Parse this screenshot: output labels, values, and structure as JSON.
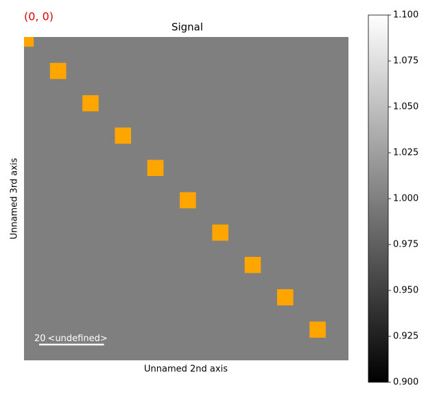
{
  "chart_data": {
    "type": "heatmap",
    "corner_label": "(0, 0)",
    "title": "Signal",
    "xlabel": "Unnamed 2nd axis",
    "ylabel": "Unnamed 3rd axis",
    "values": [
      [
        1
      ]
    ],
    "xlim": [
      -0.5,
      99.5
    ],
    "ylim": [
      99.5,
      -0.5
    ],
    "colormap": "gray",
    "colorbar": {
      "lim": [
        0.9,
        1.1
      ],
      "ticks": [
        {
          "value": 0.9,
          "label": "0.900"
        },
        {
          "value": 0.925,
          "label": "0.925"
        },
        {
          "value": 0.95,
          "label": "0.950"
        },
        {
          "value": 0.975,
          "label": "0.975"
        },
        {
          "value": 1.0,
          "label": "1.000"
        },
        {
          "value": 1.025,
          "label": "1.025"
        },
        {
          "value": 1.05,
          "label": "1.050"
        },
        {
          "value": 1.075,
          "label": "1.075"
        },
        {
          "value": 1.1,
          "label": "1.100"
        }
      ]
    },
    "markers": {
      "color": "#ffa500",
      "size": 5,
      "x": [
        0,
        10,
        20,
        30,
        40,
        50,
        60,
        70,
        80,
        90
      ],
      "y": [
        0,
        10,
        20,
        30,
        40,
        50,
        60,
        70,
        80,
        90
      ]
    },
    "scalebar": {
      "length": 20,
      "units": "<undefined>"
    }
  }
}
